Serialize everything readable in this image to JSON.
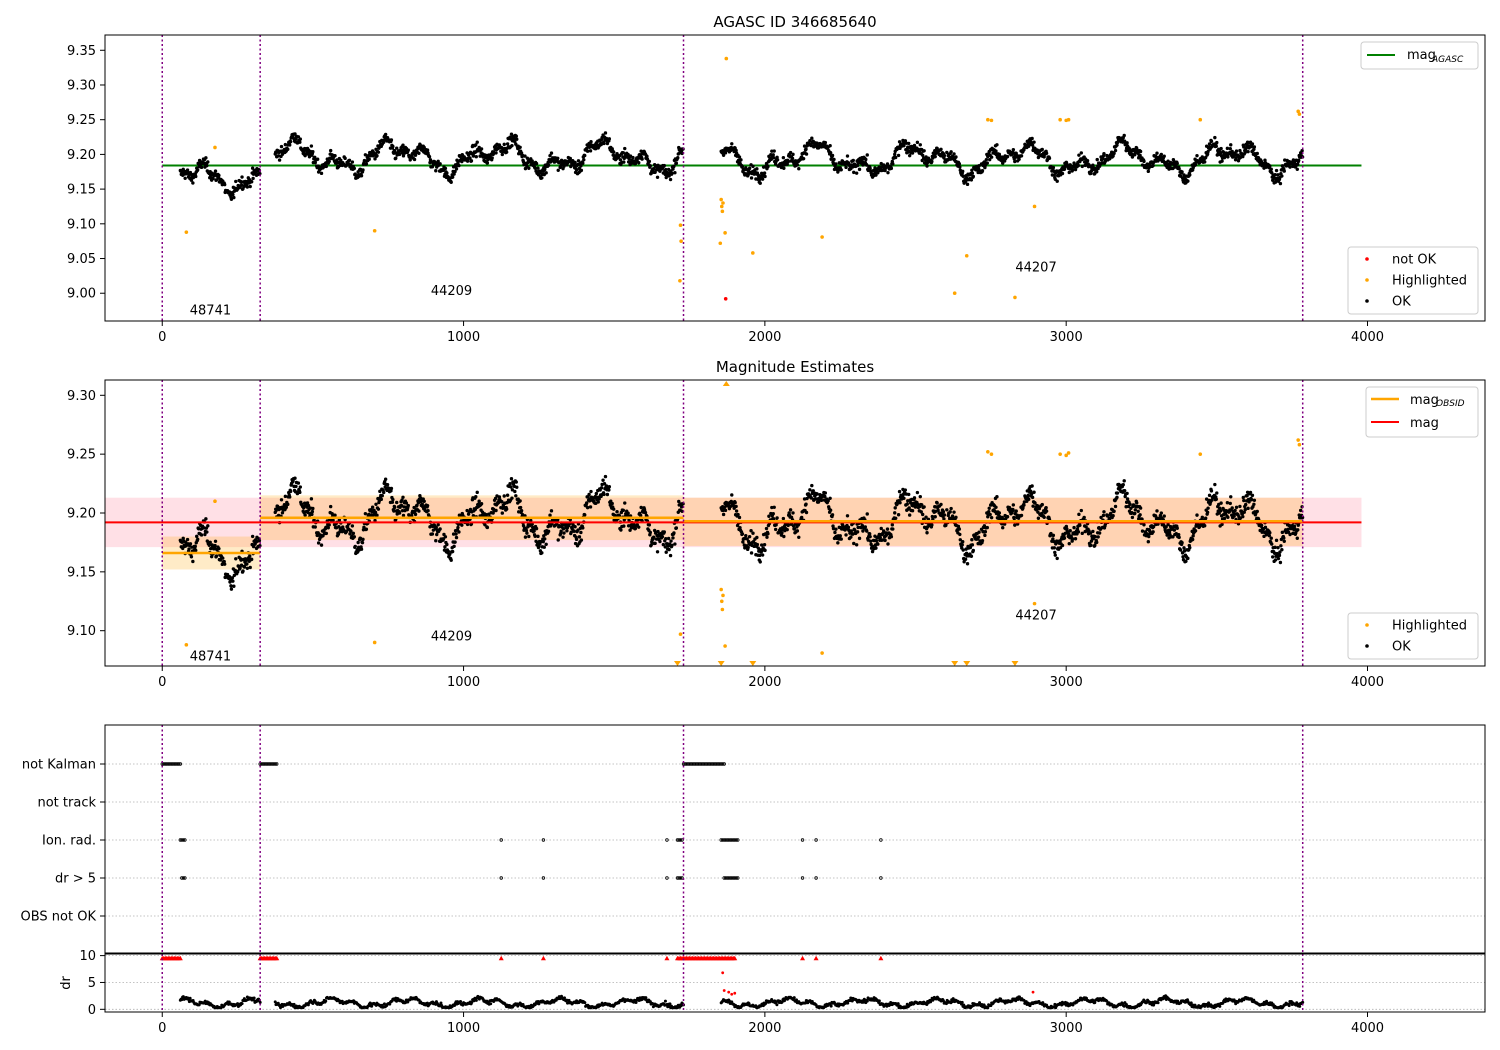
{
  "chart_data": [
    {
      "type": "scatter",
      "title": "AGASC ID 346685640",
      "xlim": [
        -190,
        4390
      ],
      "ylim": [
        8.96,
        9.372
      ],
      "xticks": [
        0,
        1000,
        2000,
        3000,
        4000
      ],
      "yticks": [
        9.0,
        9.05,
        9.1,
        9.15,
        9.2,
        9.25,
        9.3,
        9.35
      ],
      "ytick_labels": [
        "9.00",
        "9.05",
        "9.10",
        "9.15",
        "9.20",
        "9.25",
        "9.30",
        "9.35"
      ],
      "segment_boundaries": [
        0,
        325,
        1730,
        3785
      ],
      "obsid_labels": [
        {
          "text": "48741",
          "x": 160,
          "y": 8.975
        },
        {
          "text": "44209",
          "x": 960,
          "y": 9.003
        },
        {
          "text": "44207",
          "x": 2900,
          "y": 9.037
        }
      ],
      "mag_agasc": {
        "value": 9.184,
        "x_range": [
          0,
          3980
        ]
      },
      "legend_lines": {
        "mag_label": "mag",
        "mag_sub": "AGASC"
      },
      "legend_points": [
        "not OK",
        "Highlighted",
        "OK"
      ],
      "highlighted": [
        [
          80,
          9.088
        ],
        [
          175,
          9.21
        ],
        [
          705,
          9.09
        ],
        [
          1720,
          9.098
        ],
        [
          1722,
          9.075
        ],
        [
          1718,
          9.018
        ],
        [
          1855,
          9.135
        ],
        [
          1857,
          9.125
        ],
        [
          1859,
          9.118
        ],
        [
          1861,
          9.13
        ],
        [
          1852,
          9.072
        ],
        [
          1868,
          9.087
        ],
        [
          1872,
          9.338
        ],
        [
          1960,
          9.058
        ],
        [
          2190,
          9.081
        ],
        [
          2630,
          9.0
        ],
        [
          2670,
          9.054
        ],
        [
          2740,
          9.25
        ],
        [
          2752,
          9.249
        ],
        [
          2830,
          8.994
        ],
        [
          2895,
          9.125
        ],
        [
          2980,
          9.25
        ],
        [
          3000,
          9.249
        ],
        [
          3008,
          9.25
        ],
        [
          3445,
          9.25
        ],
        [
          3770,
          9.262
        ],
        [
          3774,
          9.258
        ]
      ],
      "not_ok": [
        [
          1870,
          8.992
        ]
      ]
    },
    {
      "type": "scatter",
      "title": "Magnitude Estimates",
      "xlim": [
        -190,
        4390
      ],
      "ylim": [
        9.07,
        9.313
      ],
      "xticks": [
        0,
        1000,
        2000,
        3000,
        4000
      ],
      "yticks": [
        9.1,
        9.15,
        9.2,
        9.25,
        9.3
      ],
      "ytick_labels": [
        "9.10",
        "9.15",
        "9.20",
        "9.25",
        "9.30"
      ],
      "segment_boundaries": [
        0,
        325,
        1730,
        3785
      ],
      "obsid_labels": [
        {
          "text": "48741",
          "x": 160,
          "y": 9.078
        },
        {
          "text": "44209",
          "x": 960,
          "y": 9.095
        },
        {
          "text": "44207",
          "x": 2900,
          "y": 9.113
        }
      ],
      "mag": {
        "value": 9.192,
        "band": [
          9.171,
          9.213
        ],
        "x_range": [
          -190,
          3980
        ]
      },
      "mag_obsid": [
        {
          "x_range": [
            0,
            325
          ],
          "value": 9.166,
          "band": [
            9.152,
            9.18
          ]
        },
        {
          "x_range": [
            325,
            1730
          ],
          "value": 9.196,
          "band": [
            9.177,
            9.215
          ]
        },
        {
          "x_range": [
            1730,
            3785
          ],
          "value": 9.193,
          "band": [
            9.172,
            9.213
          ]
        }
      ],
      "legend_lines": {
        "mag_obsid_label": "mag",
        "mag_obsid_sub": "OBSID",
        "mag_label": "mag"
      },
      "legend_points": [
        "Highlighted",
        "OK"
      ],
      "highlighted": [
        [
          80,
          9.088
        ],
        [
          175,
          9.21
        ],
        [
          705,
          9.09
        ],
        [
          1720,
          9.097
        ],
        [
          1855,
          9.135
        ],
        [
          1857,
          9.125
        ],
        [
          1859,
          9.118
        ],
        [
          1861,
          9.13
        ],
        [
          1868,
          9.087
        ],
        [
          2190,
          9.081
        ],
        [
          2740,
          9.252
        ],
        [
          2752,
          9.25
        ],
        [
          2895,
          9.123
        ],
        [
          2980,
          9.25
        ],
        [
          3000,
          9.249
        ],
        [
          3008,
          9.251
        ],
        [
          3445,
          9.25
        ],
        [
          3770,
          9.262
        ],
        [
          3774,
          9.258
        ]
      ],
      "clipped_low": [
        1710,
        1855,
        1960,
        2630,
        2670,
        2830
      ],
      "clipped_high": [
        1872
      ]
    },
    {
      "type": "scatter",
      "xlim": [
        -190,
        4390
      ],
      "xticks": [
        0,
        1000,
        2000,
        3000,
        4000
      ],
      "flag_rows": [
        "not Kalman",
        "not track",
        "Ion. rad.",
        "dr > 5",
        "OBS not OK"
      ],
      "flags": {
        "not Kalman": [
          [
            0,
            60
          ],
          [
            325,
            380
          ],
          [
            1730,
            1865
          ]
        ],
        "not track": [],
        "Ion. rad.": [
          [
            60,
            75
          ],
          [
            1125,
            1125
          ],
          [
            1265,
            1265
          ],
          [
            1675,
            1675
          ],
          [
            1710,
            1725
          ],
          [
            1855,
            1910
          ],
          [
            2125,
            2125
          ],
          [
            2170,
            2170
          ],
          [
            2385,
            2385
          ]
        ],
        "dr > 5": [
          [
            65,
            75
          ],
          [
            1125,
            1125
          ],
          [
            1265,
            1265
          ],
          [
            1675,
            1675
          ],
          [
            1710,
            1725
          ],
          [
            1865,
            1910
          ],
          [
            2125,
            2125
          ],
          [
            2170,
            2170
          ],
          [
            2385,
            2385
          ]
        ],
        "OBS not OK": []
      },
      "segment_boundaries": [
        0,
        325,
        1730,
        3785
      ],
      "dr_ylabel": "dr",
      "dr_yticks": [
        0,
        5,
        10
      ],
      "dr_ylim": [
        -0.5,
        10.3
      ],
      "dr_high_points": [
        [
          0,
          60
        ],
        [
          325,
          380
        ],
        [
          1125,
          1125
        ],
        [
          1265,
          1265
        ],
        [
          1675,
          1675
        ],
        [
          1710,
          1725
        ],
        [
          1730,
          1900
        ],
        [
          2125,
          2125
        ],
        [
          2170,
          2170
        ],
        [
          2385,
          2385
        ]
      ],
      "dr_red_points": [
        [
          1860,
          6.8
        ],
        [
          1865,
          3.5
        ],
        [
          1880,
          3.2
        ],
        [
          1890,
          2.8
        ],
        [
          1900,
          3.0
        ],
        [
          2890,
          3.2
        ]
      ]
    }
  ]
}
